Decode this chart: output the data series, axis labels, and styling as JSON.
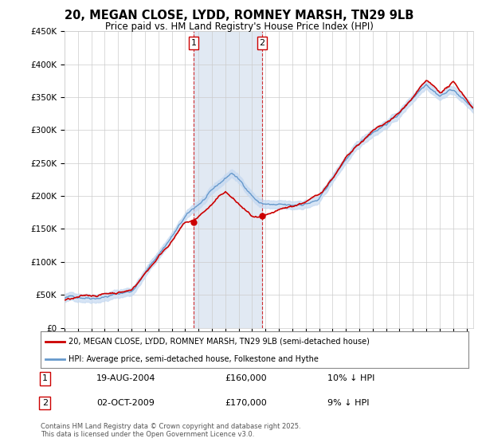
{
  "title": "20, MEGAN CLOSE, LYDD, ROMNEY MARSH, TN29 9LB",
  "subtitle": "Price paid vs. HM Land Registry's House Price Index (HPI)",
  "ylabel_ticks": [
    "£0",
    "£50K",
    "£100K",
    "£150K",
    "£200K",
    "£250K",
    "£300K",
    "£350K",
    "£400K",
    "£450K"
  ],
  "ytick_values": [
    0,
    50000,
    100000,
    150000,
    200000,
    250000,
    300000,
    350000,
    400000,
    450000
  ],
  "ylim": [
    0,
    450000
  ],
  "xlim": [
    1995,
    2025.5
  ],
  "purchase1": {
    "label": "1",
    "date": "19-AUG-2004",
    "price": 160000,
    "note": "10% ↓ HPI",
    "x_year": 2004.63
  },
  "purchase2": {
    "label": "2",
    "date": "02-OCT-2009",
    "price": 170000,
    "note": "9% ↓ HPI",
    "x_year": 2009.75
  },
  "legend_property": "20, MEGAN CLOSE, LYDD, ROMNEY MARSH, TN29 9LB (semi-detached house)",
  "legend_hpi": "HPI: Average price, semi-detached house, Folkestone and Hythe",
  "footer": "Contains HM Land Registry data © Crown copyright and database right 2025.\nThis data is licensed under the Open Government Licence v3.0.",
  "property_line_color": "#cc0000",
  "hpi_line_color": "#6699cc",
  "hpi_fill_color": "#c5d9f1",
  "shade_color": "#dce6f1",
  "background_color": "#ffffff",
  "grid_color": "#cccccc",
  "figsize": [
    6.0,
    5.6
  ],
  "dpi": 100
}
